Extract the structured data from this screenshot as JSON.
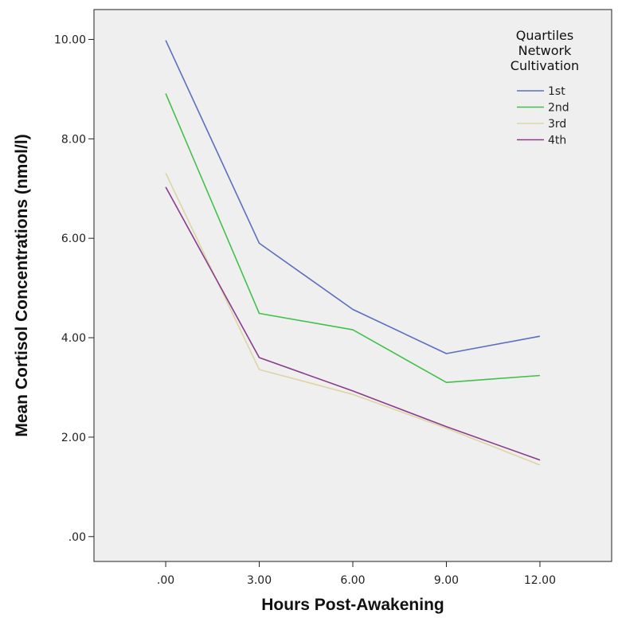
{
  "chart_data": {
    "type": "line",
    "xlabel": "Hours Post-Awakening",
    "ylabel": "Mean Cortisol Concentrations (nmol/l)",
    "x": [
      0,
      3,
      6,
      9,
      12
    ],
    "x_tick_labels": [
      ".00",
      "3.00",
      "6.00",
      "9.00",
      "12.00"
    ],
    "xlim": [
      -2.3,
      14.3
    ],
    "ylim": [
      -0.5,
      10.6
    ],
    "y_ticks": [
      0,
      2,
      4,
      6,
      8,
      10
    ],
    "y_tick_labels": [
      ".00",
      "2.00",
      "4.00",
      "6.00",
      "8.00",
      "10.00"
    ],
    "grid": false,
    "background": "#efefef",
    "legend": {
      "placement": "top-right",
      "title_lines": [
        "Quartiles",
        "Network",
        "Cultivation"
      ]
    },
    "series": [
      {
        "name": "1st",
        "color": "#5b6fc0",
        "values": [
          9.98,
          5.9,
          4.57,
          3.68,
          4.03
        ]
      },
      {
        "name": "2nd",
        "color": "#44c04a",
        "values": [
          8.91,
          4.49,
          4.16,
          3.1,
          3.24
        ]
      },
      {
        "name": "3rd",
        "color": "#ddd5a6",
        "values": [
          7.31,
          3.36,
          2.86,
          2.18,
          1.44
        ]
      },
      {
        "name": "4th",
        "color": "#8a3b8c",
        "values": [
          7.03,
          3.6,
          2.93,
          2.21,
          1.54
        ]
      }
    ]
  }
}
